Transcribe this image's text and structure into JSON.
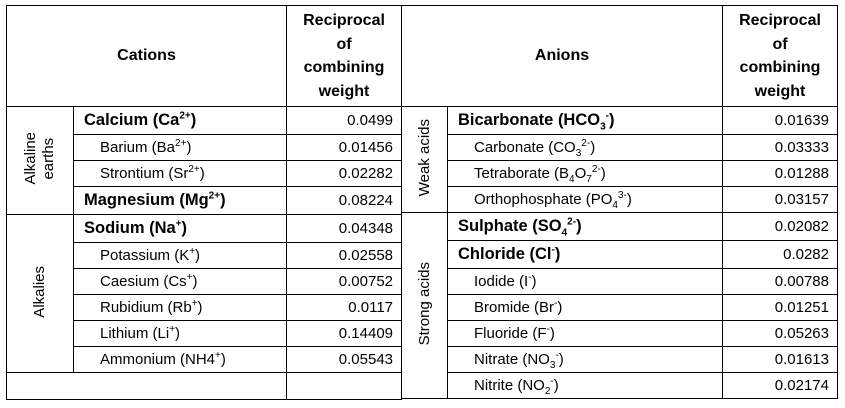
{
  "cations": {
    "header_label": "Cations",
    "value_header": [
      "Reciprocal",
      "of",
      "combining",
      "weight"
    ],
    "groups": [
      {
        "label_lines": [
          "Alkaline",
          "earths"
        ],
        "rows": [
          {
            "base": "Calcium (Ca",
            "sup": "2+",
            "sub": "",
            "tail": ")",
            "value": "0.0499",
            "bold": true
          },
          {
            "base": "Barium (Ba",
            "sup": "2+",
            "sub": "",
            "tail": ")",
            "value": "0.01456",
            "bold": false
          },
          {
            "base": "Strontium (Sr",
            "sup": "2+",
            "sub": "",
            "tail": ")",
            "value": "0.02282",
            "bold": false
          },
          {
            "base": "Magnesium (Mg",
            "sup": "2+",
            "sub": "",
            "tail": ")",
            "value": "0.08224",
            "bold": true
          }
        ]
      },
      {
        "label_lines": [
          "Alkalies"
        ],
        "rows": [
          {
            "base": "Sodium (Na",
            "sup": "+",
            "sub": "",
            "tail": ")",
            "value": "0.04348",
            "bold": true
          },
          {
            "base": "Potassium (K",
            "sup": "+",
            "sub": "",
            "tail": ")",
            "value": "0.02558",
            "bold": false
          },
          {
            "base": "Caesium (Cs",
            "sup": "+",
            "sub": "",
            "tail": ")",
            "value": "0.00752",
            "bold": false
          },
          {
            "base": "Rubidium (Rb",
            "sup": "+",
            "sub": "",
            "tail": ")",
            "value": "0.0117",
            "bold": false
          },
          {
            "base": "Lithium (Li",
            "sup": "+",
            "sub": "",
            "tail": ")",
            "value": "0.14409",
            "bold": false
          },
          {
            "base": "Ammonium (NH4",
            "sup": "+",
            "sub": "",
            "tail": ")",
            "value": "0.05543",
            "bold": false
          }
        ]
      }
    ]
  },
  "anions": {
    "header_label": "Anions",
    "value_header": [
      "Reciprocal",
      "of",
      "combining",
      "weight"
    ],
    "groups": [
      {
        "label_lines": [
          "Weak acids"
        ],
        "rows": [
          {
            "base": "Bicarbonate (HCO",
            "sub": "3",
            "sup": "-",
            "tail": ")",
            "value": "0.01639",
            "bold": true
          },
          {
            "base": "Carbonate (CO",
            "sub": "3",
            "sup": "2-",
            "tail": ")",
            "value": "0.03333",
            "bold": false
          },
          {
            "base": "Tetraborate (B",
            "sub": "4",
            "mid": "O",
            "sub2": "7",
            "sup": "2-",
            "tail": ")",
            "value": "0.01288",
            "bold": false
          },
          {
            "base": "Orthophosphate (PO",
            "sub": "4",
            "sup": "3-",
            "tail": ")",
            "value": "0.03157",
            "bold": false
          }
        ]
      },
      {
        "label_lines": [
          "Strong acids"
        ],
        "rows": [
          {
            "base": "Sulphate (SO",
            "sub": "4",
            "sup": "2-",
            "tail": ")",
            "value": "0.02082",
            "bold": true
          },
          {
            "base": "Chloride (Cl",
            "sub": "",
            "sup": "-",
            "tail": ")",
            "value": "0.0282",
            "bold": true
          },
          {
            "base": "Iodide (I",
            "sub": "",
            "sup": "-",
            "tail": ")",
            "value": "0.00788",
            "bold": false
          },
          {
            "base": "Bromide (Br",
            "sub": "",
            "sup": "-",
            "tail": ")",
            "value": "0.01251",
            "bold": false
          },
          {
            "base": "Fluoride (F",
            "sub": "",
            "sup": "-",
            "tail": ")",
            "value": "0.05263",
            "bold": false
          },
          {
            "base": "Nitrate (NO",
            "sub": "3",
            "sup": "-",
            "tail": ")",
            "value": "0.01613",
            "bold": false
          },
          {
            "base": "Nitrite (NO",
            "sub": "2",
            "sup": "-",
            "tail": ")",
            "value": "0.02174",
            "bold": false
          }
        ]
      }
    ]
  }
}
